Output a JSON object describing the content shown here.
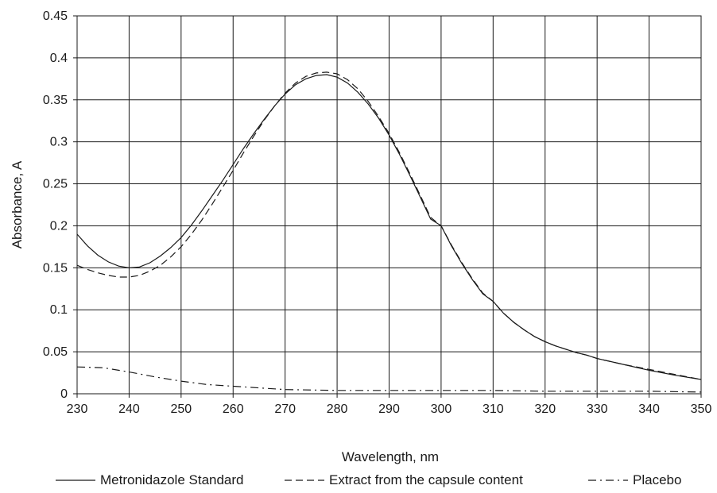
{
  "chart_data": {
    "type": "line",
    "title": "",
    "xlabel": "Wavelength, nm",
    "ylabel": "Absorbance, A",
    "xlim": [
      230,
      350
    ],
    "ylim": [
      0,
      0.45
    ],
    "xticks": [
      "230",
      "240",
      "250",
      "260",
      "270",
      "280",
      "290",
      "300",
      "310",
      "320",
      "330",
      "340",
      "350"
    ],
    "yticks": [
      "0",
      "0.05",
      "0.1",
      "0.15",
      "0.2",
      "0.25",
      "0.3",
      "0.35",
      "0.4",
      "0.45"
    ],
    "grid": true,
    "legend_position": "bottom",
    "series": [
      {
        "name": "Metronidazole Standard",
        "style": "solid",
        "color": "#1a1a1a",
        "x": [
          230,
          232,
          234,
          236,
          238,
          240,
          242,
          244,
          246,
          248,
          250,
          252,
          254,
          256,
          258,
          260,
          262,
          264,
          266,
          268,
          270,
          272,
          274,
          276,
          278,
          280,
          282,
          284,
          286,
          288,
          290,
          292,
          294,
          296,
          298,
          300,
          302,
          304,
          306,
          308,
          310,
          312,
          314,
          316,
          318,
          320,
          322,
          324,
          326,
          328,
          330,
          335,
          340,
          345,
          350
        ],
        "y": [
          0.19,
          0.176,
          0.165,
          0.157,
          0.152,
          0.15,
          0.151,
          0.156,
          0.164,
          0.174,
          0.186,
          0.201,
          0.218,
          0.236,
          0.254,
          0.273,
          0.292,
          0.31,
          0.327,
          0.343,
          0.357,
          0.368,
          0.375,
          0.379,
          0.38,
          0.377,
          0.37,
          0.359,
          0.345,
          0.328,
          0.308,
          0.285,
          0.26,
          0.234,
          0.208,
          0.2,
          0.176,
          0.155,
          0.136,
          0.119,
          0.11,
          0.096,
          0.085,
          0.076,
          0.068,
          0.062,
          0.057,
          0.053,
          0.049,
          0.046,
          0.042,
          0.035,
          0.028,
          0.022,
          0.017
        ]
      },
      {
        "name": "Extract from the capsule content",
        "style": "dashed",
        "color": "#1a1a1a",
        "x": [
          230,
          232,
          234,
          236,
          238,
          240,
          242,
          244,
          246,
          248,
          250,
          252,
          254,
          256,
          258,
          260,
          262,
          264,
          266,
          268,
          270,
          272,
          274,
          276,
          278,
          280,
          282,
          284,
          286,
          288,
          290,
          292,
          294,
          296,
          298,
          300,
          302,
          304,
          306,
          308,
          310,
          312,
          314,
          316,
          318,
          320,
          322,
          324,
          326,
          328,
          330,
          335,
          340,
          345,
          350
        ],
        "y": [
          0.153,
          0.148,
          0.144,
          0.141,
          0.139,
          0.139,
          0.141,
          0.146,
          0.153,
          0.163,
          0.175,
          0.19,
          0.207,
          0.226,
          0.246,
          0.266,
          0.287,
          0.307,
          0.326,
          0.343,
          0.358,
          0.37,
          0.378,
          0.382,
          0.383,
          0.381,
          0.374,
          0.363,
          0.348,
          0.33,
          0.31,
          0.287,
          0.262,
          0.236,
          0.21,
          0.2,
          0.177,
          0.156,
          0.137,
          0.12,
          0.11,
          0.096,
          0.085,
          0.076,
          0.068,
          0.062,
          0.057,
          0.053,
          0.049,
          0.046,
          0.042,
          0.035,
          0.029,
          0.023,
          0.017
        ]
      },
      {
        "name": "Placebo",
        "style": "dashdot",
        "color": "#1a1a1a",
        "x": [
          230,
          235,
          240,
          245,
          250,
          255,
          260,
          265,
          270,
          280,
          290,
          300,
          310,
          320,
          330,
          340,
          350
        ],
        "y": [
          0.032,
          0.031,
          0.026,
          0.02,
          0.015,
          0.011,
          0.009,
          0.007,
          0.005,
          0.004,
          0.004,
          0.004,
          0.004,
          0.003,
          0.003,
          0.003,
          0.002
        ]
      }
    ]
  }
}
